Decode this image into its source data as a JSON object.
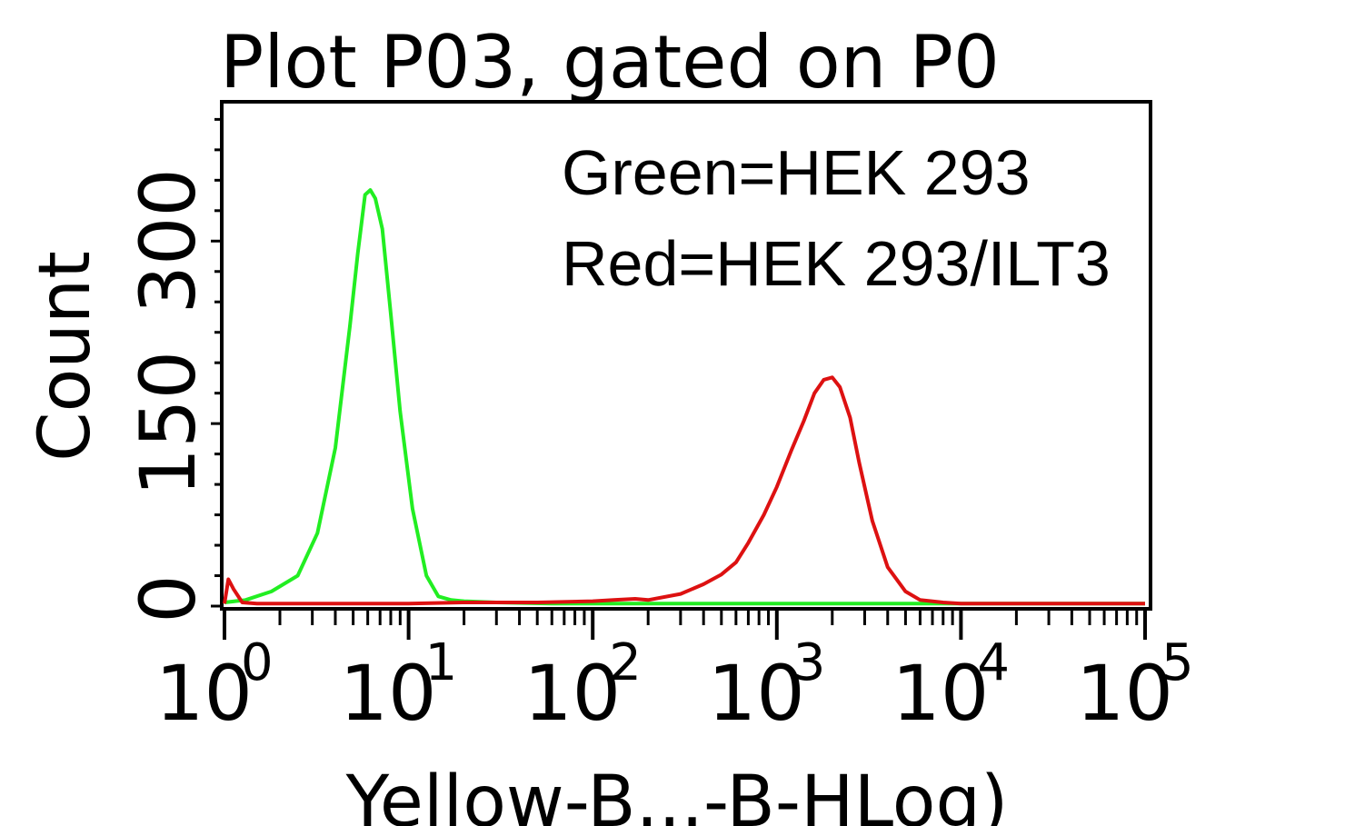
{
  "chart_data": {
    "type": "line",
    "title": "Plot P03, gated on P0",
    "xlabel": "Yellow-B...-B-HLog)",
    "ylabel": "Count",
    "x_scale": "log",
    "xlim": [
      1,
      100000
    ],
    "ylim": [
      0,
      410
    ],
    "x_ticks": [
      {
        "base": "10",
        "exp": "0"
      },
      {
        "base": "10",
        "exp": "1"
      },
      {
        "base": "10",
        "exp": "2"
      },
      {
        "base": "10",
        "exp": "3"
      },
      {
        "base": "10",
        "exp": "4"
      },
      {
        "base": "10",
        "exp": "5"
      }
    ],
    "y_ticks": [
      0,
      150,
      300
    ],
    "y_tick_labels": [
      "0",
      "150",
      "300"
    ],
    "legend": [
      "Green=HEK 293",
      "Red=HEK 293/ILT3"
    ],
    "grid": false,
    "series": [
      {
        "name": "Green=HEK 293",
        "color": "#22ee22",
        "x": [
          1,
          1.3,
          1.8,
          2.5,
          3.2,
          4.0,
          4.8,
          5.3,
          5.8,
          6.2,
          6.6,
          7.2,
          8.0,
          9.0,
          10.5,
          12.5,
          14.5,
          17,
          20,
          30,
          60,
          100,
          200,
          500,
          1000,
          5000,
          20000,
          100000
        ],
        "y": [
          3,
          5,
          12,
          25,
          60,
          130,
          230,
          290,
          338,
          342,
          335,
          310,
          240,
          160,
          80,
          25,
          8,
          5,
          4,
          3,
          2,
          2,
          2,
          2,
          2,
          2,
          2,
          2
        ]
      },
      {
        "name": "Red=HEK 293/ILT3",
        "color": "#dd1111",
        "x": [
          1,
          1.05,
          1.12,
          1.25,
          1.5,
          2,
          5,
          10,
          20,
          50,
          100,
          130,
          170,
          200,
          300,
          400,
          500,
          600,
          700,
          850,
          1000,
          1200,
          1400,
          1600,
          1800,
          2000,
          2200,
          2500,
          2800,
          3300,
          4000,
          5000,
          6000,
          8000,
          10000,
          20000,
          100000
        ],
        "y": [
          2,
          22,
          14,
          3,
          2,
          2,
          2,
          2,
          3,
          3,
          4,
          5,
          6,
          5,
          10,
          18,
          26,
          36,
          52,
          75,
          98,
          128,
          152,
          175,
          186,
          188,
          180,
          155,
          118,
          70,
          32,
          12,
          5,
          3,
          2,
          2,
          2
        ]
      }
    ]
  }
}
